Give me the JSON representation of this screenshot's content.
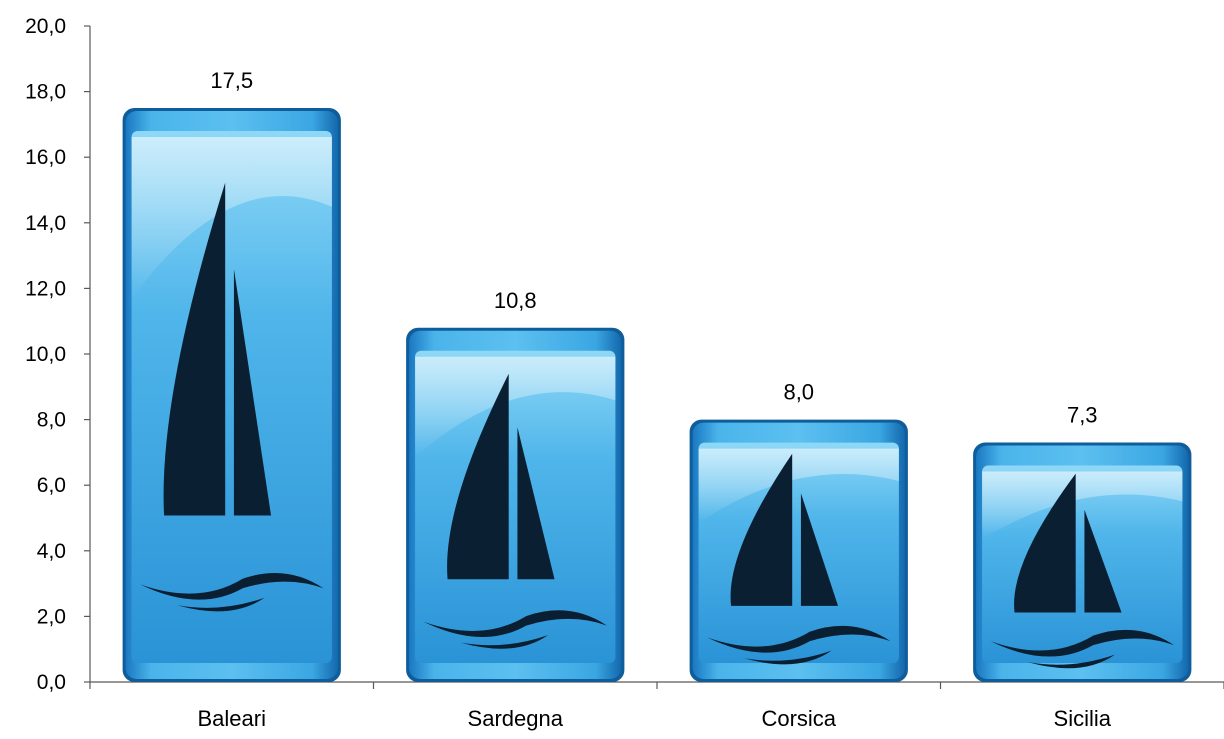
{
  "chart_data": {
    "type": "bar",
    "title": "",
    "xlabel": "",
    "ylabel": "",
    "categories": [
      "Baleari",
      "Sardegna",
      "Corsica",
      "Sicilia"
    ],
    "values": [
      17.5,
      10.8,
      8.0,
      7.3
    ],
    "value_labels": [
      "17,5",
      "10,8",
      "8,0",
      "7,3"
    ],
    "ylim": [
      0,
      20
    ],
    "y_ticks": [
      0,
      2,
      4,
      6,
      8,
      10,
      12,
      14,
      16,
      18,
      20
    ],
    "y_tick_labels": [
      "0,0",
      "2,0",
      "4,0",
      "6,0",
      "8,0",
      "10,0",
      "12,0",
      "14,0",
      "16,0",
      "18,0",
      "20,0"
    ],
    "grid": false,
    "legend": "none",
    "bar_style": "glossy blue tiles with sailboat-icon",
    "colors": {
      "bar_light": "#7fd0f5",
      "bar_mid": "#2f9fde",
      "bar_dark": "#0d5e9c",
      "icon": "#0b1f33",
      "axis": "#595959"
    }
  }
}
